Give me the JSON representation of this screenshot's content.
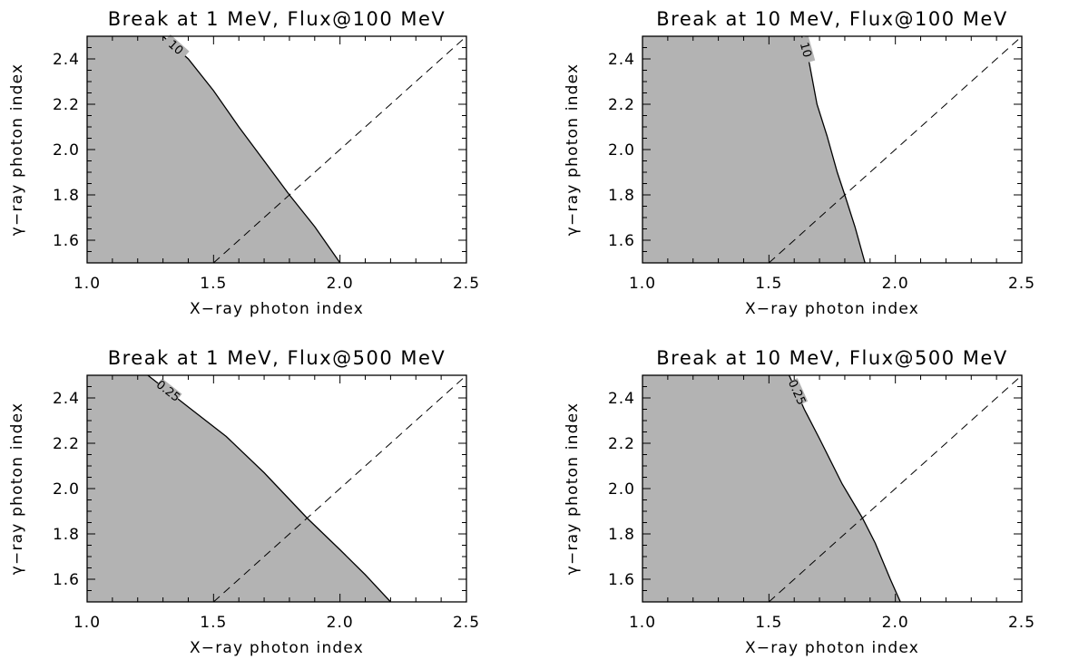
{
  "colors": {
    "fill": "#b3b3b3",
    "line": "#000000",
    "background": "#ffffff"
  },
  "chart_data": [
    {
      "type": "area",
      "title": "Break at 1 MeV, Flux@100 MeV",
      "xlabel": "X−ray photon index",
      "ylabel": "γ−ray photon index",
      "xlim": [
        1.0,
        2.5
      ],
      "ylim": [
        1.5,
        2.5
      ],
      "xticks": [
        "1.0",
        "1.5",
        "2.0",
        "2.5"
      ],
      "yticks": [
        "1.6",
        "1.8",
        "2.0",
        "2.2",
        "2.4"
      ],
      "contour_label": "10",
      "contour": [
        [
          1.3,
          2.5
        ],
        [
          1.4,
          2.4
        ],
        [
          1.5,
          2.26
        ],
        [
          1.6,
          2.1
        ],
        [
          1.7,
          1.95
        ],
        [
          1.8,
          1.8
        ],
        [
          1.9,
          1.66
        ],
        [
          2.0,
          1.5
        ]
      ],
      "diagonal": [
        [
          1.5,
          1.5
        ],
        [
          2.5,
          2.5
        ]
      ],
      "grid": false
    },
    {
      "type": "area",
      "title": "Break at 10 MeV, Flux@100 MeV",
      "xlabel": "X−ray photon index",
      "ylabel": "γ−ray photon index",
      "xlim": [
        1.0,
        2.5
      ],
      "ylim": [
        1.5,
        2.5
      ],
      "xticks": [
        "1.0",
        "1.5",
        "2.0",
        "2.5"
      ],
      "yticks": [
        "1.6",
        "1.8",
        "2.0",
        "2.2",
        "2.4"
      ],
      "contour_label": "10",
      "contour": [
        [
          1.63,
          2.5
        ],
        [
          1.66,
          2.38
        ],
        [
          1.69,
          2.2
        ],
        [
          1.73,
          2.06
        ],
        [
          1.77,
          1.9
        ],
        [
          1.8,
          1.8
        ],
        [
          1.84,
          1.66
        ],
        [
          1.88,
          1.5
        ]
      ],
      "diagonal": [
        [
          1.5,
          1.5
        ],
        [
          2.5,
          2.5
        ]
      ],
      "grid": false
    },
    {
      "type": "area",
      "title": "Break at 1 MeV, Flux@500 MeV",
      "xlabel": "X−ray photon index",
      "ylabel": "γ−ray photon index",
      "xlim": [
        1.0,
        2.5
      ],
      "ylim": [
        1.5,
        2.5
      ],
      "xticks": [
        "1.0",
        "1.5",
        "2.0",
        "2.5"
      ],
      "yticks": [
        "1.6",
        "1.8",
        "2.0",
        "2.2",
        "2.4"
      ],
      "contour_label": "0.25",
      "contour": [
        [
          1.24,
          2.5
        ],
        [
          1.4,
          2.36
        ],
        [
          1.55,
          2.23
        ],
        [
          1.7,
          2.07
        ],
        [
          1.87,
          1.87
        ],
        [
          2.0,
          1.73
        ],
        [
          2.1,
          1.62
        ],
        [
          2.2,
          1.5
        ]
      ],
      "diagonal": [
        [
          1.5,
          1.5
        ],
        [
          2.5,
          2.5
        ]
      ],
      "grid": false
    },
    {
      "type": "area",
      "title": "Break at 10 MeV, Flux@500 MeV",
      "xlabel": "X−ray photon index",
      "ylabel": "γ−ray photon index",
      "xlim": [
        1.0,
        2.5
      ],
      "ylim": [
        1.5,
        2.5
      ],
      "xticks": [
        "1.0",
        "1.5",
        "2.0",
        "2.5"
      ],
      "yticks": [
        "1.6",
        "1.8",
        "2.0",
        "2.2",
        "2.4"
      ],
      "contour_label": "0.25",
      "contour": [
        [
          1.58,
          2.5
        ],
        [
          1.64,
          2.35
        ],
        [
          1.7,
          2.22
        ],
        [
          1.79,
          2.02
        ],
        [
          1.87,
          1.87
        ],
        [
          1.92,
          1.76
        ],
        [
          1.98,
          1.6
        ],
        [
          2.02,
          1.5
        ]
      ],
      "diagonal": [
        [
          1.5,
          1.5
        ],
        [
          2.5,
          2.5
        ]
      ],
      "grid": false
    }
  ]
}
